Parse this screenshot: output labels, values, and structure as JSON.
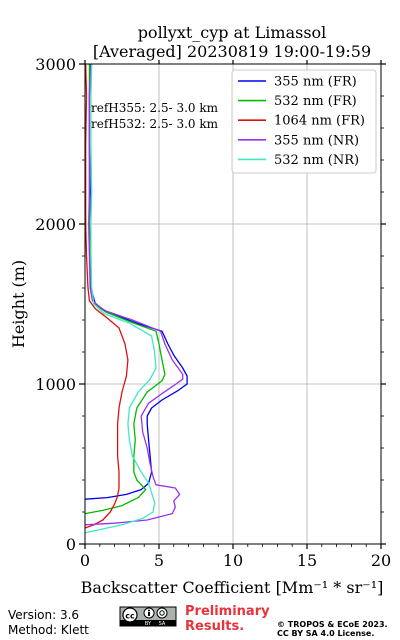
{
  "chart_data": {
    "type": "line",
    "title": "pollyxt_cyp at Limassol",
    "subtitle": "[Averaged] 20230819 19:00-19:59",
    "xlabel": "Backscatter Coefficient [Mm⁻¹ * sr⁻¹]",
    "ylabel": "Height (m)",
    "xlim": [
      0,
      20
    ],
    "ylim": [
      0,
      3000
    ],
    "xticks": [
      "0",
      "5",
      "10",
      "15",
      "20"
    ],
    "yticks": [
      "0",
      "1000",
      "2000",
      "3000"
    ],
    "grid": true,
    "legend_position": "top-right",
    "annotations": [
      "refH355:  2.5- 3.0 km",
      "refH532:  2.5- 3.0 km"
    ],
    "series": [
      {
        "name": "355 nm (FR)",
        "color": "#0000ee",
        "points": [
          [
            0,
            280
          ],
          [
            1.5,
            290
          ],
          [
            2.8,
            310
          ],
          [
            3.8,
            340
          ],
          [
            4.3,
            380
          ],
          [
            4.5,
            450
          ],
          [
            4.4,
            550
          ],
          [
            4.3,
            650
          ],
          [
            4.2,
            750
          ],
          [
            4.2,
            800
          ],
          [
            4.5,
            850
          ],
          [
            5.2,
            900
          ],
          [
            6.3,
            960
          ],
          [
            6.9,
            1000
          ],
          [
            6.9,
            1050
          ],
          [
            6.6,
            1100
          ],
          [
            6.0,
            1180
          ],
          [
            5.6,
            1250
          ],
          [
            5.2,
            1330
          ],
          [
            3.5,
            1380
          ],
          [
            1.5,
            1450
          ],
          [
            0.7,
            1500
          ],
          [
            0.4,
            1600
          ],
          [
            0.4,
            1800
          ],
          [
            0.3,
            2000
          ],
          [
            0.35,
            2200
          ],
          [
            0.3,
            2500
          ],
          [
            0.3,
            2800
          ],
          [
            0.35,
            3000
          ]
        ]
      },
      {
        "name": "532 nm (FR)",
        "color": "#00bb00",
        "points": [
          [
            0,
            190
          ],
          [
            1.2,
            210
          ],
          [
            2.5,
            240
          ],
          [
            3.6,
            290
          ],
          [
            4.1,
            340
          ],
          [
            3.5,
            400
          ],
          [
            3.3,
            450
          ],
          [
            3.3,
            500
          ],
          [
            3.3,
            550
          ],
          [
            3.4,
            650
          ],
          [
            3.3,
            750
          ],
          [
            3.5,
            850
          ],
          [
            4.2,
            950
          ],
          [
            5.2,
            1020
          ],
          [
            5.4,
            1060
          ],
          [
            5.2,
            1150
          ],
          [
            5.0,
            1250
          ],
          [
            4.8,
            1330
          ],
          [
            3.3,
            1380
          ],
          [
            1.4,
            1450
          ],
          [
            0.6,
            1500
          ],
          [
            0.35,
            1600
          ],
          [
            0.35,
            1800
          ],
          [
            0.3,
            2000
          ],
          [
            0.3,
            2200
          ],
          [
            0.3,
            2500
          ],
          [
            0.3,
            2800
          ],
          [
            0.3,
            3000
          ]
        ]
      },
      {
        "name": "1064 nm (FR)",
        "color": "#dd1111",
        "points": [
          [
            0,
            100
          ],
          [
            0.6,
            120
          ],
          [
            1.2,
            150
          ],
          [
            1.7,
            200
          ],
          [
            2.0,
            250
          ],
          [
            2.2,
            300
          ],
          [
            2.3,
            350
          ],
          [
            2.3,
            450
          ],
          [
            2.2,
            550
          ],
          [
            2.2,
            650
          ],
          [
            2.2,
            750
          ],
          [
            2.3,
            850
          ],
          [
            2.5,
            950
          ],
          [
            2.8,
            1050
          ],
          [
            2.9,
            1150
          ],
          [
            2.7,
            1250
          ],
          [
            2.3,
            1350
          ],
          [
            1.4,
            1420
          ],
          [
            0.7,
            1470
          ],
          [
            0.3,
            1520
          ],
          [
            0.2,
            1600
          ],
          [
            0.1,
            1800
          ],
          [
            0.05,
            2000
          ],
          [
            0.05,
            2200
          ],
          [
            0.05,
            2500
          ],
          [
            0.1,
            2800
          ],
          [
            0.05,
            3000
          ]
        ]
      },
      {
        "name": "355 nm (NR)",
        "color": "#9933ee",
        "points": [
          [
            0,
            120
          ],
          [
            2.0,
            130
          ],
          [
            4.2,
            150
          ],
          [
            5.9,
            190
          ],
          [
            6.1,
            230
          ],
          [
            6.0,
            270
          ],
          [
            6.4,
            310
          ],
          [
            6.1,
            350
          ],
          [
            4.8,
            370
          ],
          [
            4.6,
            420
          ],
          [
            4.4,
            500
          ],
          [
            4.2,
            600
          ],
          [
            3.9,
            700
          ],
          [
            3.8,
            800
          ],
          [
            4.3,
            880
          ],
          [
            5.2,
            940
          ],
          [
            6.0,
            990
          ],
          [
            6.6,
            1030
          ],
          [
            6.6,
            1060
          ],
          [
            6.3,
            1100
          ],
          [
            5.9,
            1150
          ],
          [
            5.4,
            1250
          ],
          [
            5.1,
            1330
          ],
          [
            3.2,
            1400
          ],
          [
            1.3,
            1460
          ],
          [
            0.5,
            1520
          ],
          [
            0.35,
            1600
          ],
          [
            0.3,
            1800
          ],
          [
            0.25,
            2000
          ],
          [
            0.3,
            2200
          ],
          [
            0.3,
            2500
          ],
          [
            0.3,
            2800
          ],
          [
            0.4,
            3000
          ]
        ]
      },
      {
        "name": "532 nm (NR)",
        "color": "#40e8c0",
        "points": [
          [
            0,
            70
          ],
          [
            1.0,
            90
          ],
          [
            2.5,
            120
          ],
          [
            3.9,
            160
          ],
          [
            4.6,
            200
          ],
          [
            4.7,
            260
          ],
          [
            4.5,
            320
          ],
          [
            4.3,
            380
          ],
          [
            3.8,
            450
          ],
          [
            3.2,
            550
          ],
          [
            3.0,
            650
          ],
          [
            2.9,
            750
          ],
          [
            3.0,
            850
          ],
          [
            3.6,
            950
          ],
          [
            4.4,
            1030
          ],
          [
            4.8,
            1100
          ],
          [
            4.7,
            1200
          ],
          [
            4.5,
            1300
          ],
          [
            3.0,
            1380
          ],
          [
            1.3,
            1440
          ],
          [
            0.6,
            1500
          ],
          [
            0.45,
            1600
          ],
          [
            0.4,
            1800
          ],
          [
            0.4,
            2000
          ],
          [
            0.45,
            2200
          ],
          [
            0.4,
            2500
          ],
          [
            0.4,
            2800
          ],
          [
            0.45,
            3000
          ]
        ]
      }
    ]
  },
  "footer": {
    "version": "Version: 3.6",
    "method": "Method: Klett",
    "preliminary_line1": "Preliminary",
    "preliminary_line2": "Results.",
    "copyright_line1": "© TROPOS & ECoE 2023.",
    "copyright_line2": "CC BY SA 4.0 License."
  }
}
